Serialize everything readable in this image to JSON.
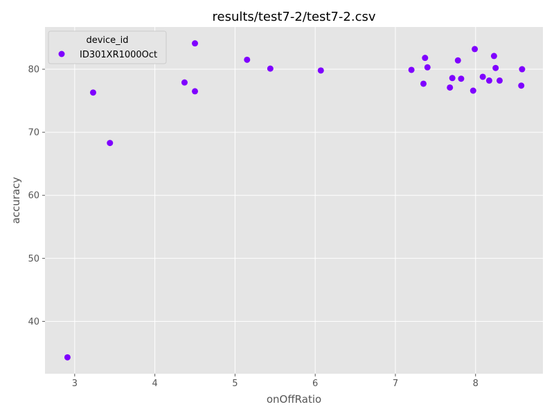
{
  "chart_data": {
    "type": "scatter",
    "title": "results/test7-2/test7-2.csv",
    "xlabel": "onOffRatio",
    "ylabel": "accuracy",
    "xlim": [
      2.63,
      8.84
    ],
    "ylim": [
      31.7,
      86.7
    ],
    "xticks": [
      3,
      4,
      5,
      6,
      7,
      8
    ],
    "yticks": [
      40,
      50,
      60,
      70,
      80
    ],
    "grid": true,
    "legend": {
      "title": "device_id",
      "placement": "top-left"
    },
    "colors": {
      "background": "#e5e5e5",
      "grid": "#ffffff",
      "marker": "#7f00ff",
      "text": "#555555",
      "title": "#000000"
    },
    "series": [
      {
        "name": "ID301XR1000Oct",
        "points": [
          {
            "x": 2.91,
            "y": 34.3
          },
          {
            "x": 3.23,
            "y": 76.3
          },
          {
            "x": 3.44,
            "y": 68.3
          },
          {
            "x": 4.37,
            "y": 77.9
          },
          {
            "x": 4.5,
            "y": 84.1
          },
          {
            "x": 4.5,
            "y": 76.5
          },
          {
            "x": 5.15,
            "y": 81.5
          },
          {
            "x": 5.44,
            "y": 80.1
          },
          {
            "x": 6.07,
            "y": 79.8
          },
          {
            "x": 7.2,
            "y": 79.9
          },
          {
            "x": 7.35,
            "y": 77.7
          },
          {
            "x": 7.37,
            "y": 81.8
          },
          {
            "x": 7.4,
            "y": 80.3
          },
          {
            "x": 7.68,
            "y": 77.1
          },
          {
            "x": 7.71,
            "y": 78.6
          },
          {
            "x": 7.78,
            "y": 81.4
          },
          {
            "x": 7.82,
            "y": 78.5
          },
          {
            "x": 7.97,
            "y": 76.6
          },
          {
            "x": 7.99,
            "y": 83.2
          },
          {
            "x": 8.09,
            "y": 78.8
          },
          {
            "x": 8.17,
            "y": 78.2
          },
          {
            "x": 8.23,
            "y": 82.1
          },
          {
            "x": 8.25,
            "y": 80.2
          },
          {
            "x": 8.3,
            "y": 78.2
          },
          {
            "x": 8.57,
            "y": 77.4
          },
          {
            "x": 8.58,
            "y": 80.0
          }
        ]
      }
    ]
  }
}
